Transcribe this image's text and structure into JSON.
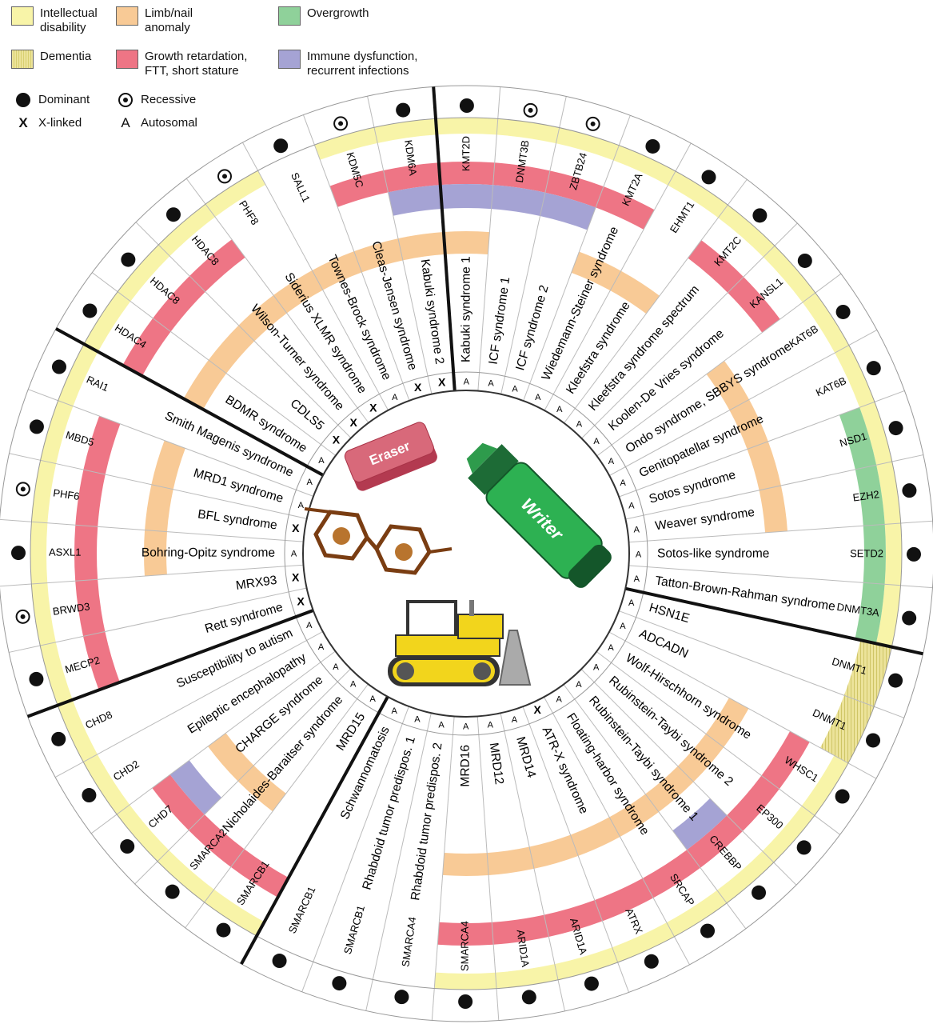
{
  "legend": {
    "intellectual_disability": "Intellectual\ndisability",
    "dementia": "Dementia",
    "limb_nail": "Limb/nail\nanomaly",
    "growth": "Growth retardation,\nFTT, short stature",
    "overgrowth": "Overgrowth",
    "immune": "Immune dysfunction,\nrecurrent infections",
    "dominant": "Dominant",
    "recessive": "Recessive",
    "x_linked": "X-linked",
    "autosomal": "Autosomal"
  },
  "colors": {
    "yellow": "#f8f4a8",
    "orange": "#f8ca96",
    "pink": "#ee7585",
    "purple": "#a5a3d4",
    "green": "#8fd19a",
    "dementia": "#ece39a"
  },
  "center_icons": {
    "eraser": "Eraser",
    "writer": "Writer",
    "reader": "glasses-icon",
    "remodeler": "bulldozer-icon"
  },
  "sectors": [
    {
      "name": "eraser",
      "icon": "eraser-icon"
    },
    {
      "name": "writer",
      "icon": "marker-icon"
    },
    {
      "name": "remodeler",
      "icon": "bulldozer-icon"
    },
    {
      "name": "reader",
      "icon": "glasses-icon"
    }
  ],
  "entries": [
    {
      "gene": "KMT2D",
      "disease": "Kabuki syndrome 1",
      "inh": "dom",
      "chr": "A",
      "id": true,
      "orange": true,
      "pink": true,
      "purple": true,
      "green": false
    },
    {
      "gene": "DNMT3B",
      "disease": "ICF syndrome 1",
      "inh": "rec",
      "chr": "A",
      "id": true,
      "orange": false,
      "pink": true,
      "purple": true,
      "green": false
    },
    {
      "gene": "ZBTB24",
      "disease": "ICF syndrome 2",
      "inh": "rec",
      "chr": "A",
      "id": true,
      "orange": false,
      "pink": true,
      "purple": true,
      "green": false
    },
    {
      "gene": "KMT2A",
      "disease": "Wiedemann-Steiner syndrome",
      "inh": "dom",
      "chr": "A",
      "id": true,
      "orange": true,
      "pink": true,
      "purple": false,
      "green": false
    },
    {
      "gene": "EHMT1",
      "disease": "Kleefstra syndrome",
      "inh": "dom",
      "chr": "A",
      "id": true,
      "orange": true,
      "pink": false,
      "purple": false,
      "green": false
    },
    {
      "gene": "KMT2C",
      "disease": "Kleefstra syndrome spectrum",
      "inh": "dom",
      "chr": "A",
      "id": true,
      "orange": false,
      "pink": true,
      "purple": false,
      "green": false
    },
    {
      "gene": "KANSL1",
      "disease": "Koolen-De Vries syndrome",
      "inh": "dom",
      "chr": "A",
      "id": true,
      "orange": false,
      "pink": true,
      "purple": false,
      "green": false
    },
    {
      "gene": "KAT6B",
      "disease": "Ondo syndrome, SBBYS syndrome",
      "inh": "dom",
      "chr": "A",
      "id": true,
      "orange": true,
      "pink": false,
      "purple": false,
      "green": false
    },
    {
      "gene": "KAT6B",
      "disease": "Genitopatellar syndrome",
      "inh": "dom",
      "chr": "A",
      "id": true,
      "orange": true,
      "pink": false,
      "purple": false,
      "green": false
    },
    {
      "gene": "NSD1",
      "disease": "Sotos syndrome",
      "inh": "dom",
      "chr": "A",
      "id": true,
      "orange": true,
      "pink": false,
      "purple": false,
      "green": true
    },
    {
      "gene": "EZH2",
      "disease": "Weaver syndrome",
      "inh": "dom",
      "chr": "A",
      "id": true,
      "orange": true,
      "pink": false,
      "purple": false,
      "green": true
    },
    {
      "gene": "SETD2",
      "disease": "Sotos-like syndrome",
      "inh": "dom",
      "chr": "A",
      "id": true,
      "orange": false,
      "pink": false,
      "purple": false,
      "green": true
    },
    {
      "gene": "DNMT3A",
      "disease": "Tatton-Brown-Rahman syndrome",
      "inh": "dom",
      "chr": "A",
      "id": true,
      "orange": false,
      "pink": false,
      "purple": false,
      "green": true
    },
    {
      "gene": "DNMT1",
      "disease": "HSN1E",
      "inh": "dom",
      "chr": "A",
      "id": false,
      "dementia": true,
      "orange": false,
      "pink": false,
      "purple": false,
      "green": false
    },
    {
      "gene": "DNMT1",
      "disease": "ADCADN",
      "inh": "dom",
      "chr": "A",
      "id": false,
      "dementia": true,
      "orange": false,
      "pink": false,
      "purple": false,
      "green": false
    },
    {
      "gene": "WHSC1",
      "disease": "Wolf-Hirschhorn syndrome",
      "inh": "dom",
      "chr": "A",
      "id": true,
      "orange": true,
      "pink": true,
      "purple": false,
      "green": false
    },
    {
      "gene": "EP300",
      "disease": "Rubinstein-Taybi syndrome 2",
      "inh": "dom",
      "chr": "A",
      "id": true,
      "orange": true,
      "pink": true,
      "purple": false,
      "green": false
    },
    {
      "gene": "CREBBP",
      "disease": "Rubinstein-Taybi syndrome 1",
      "inh": "dom",
      "chr": "A",
      "id": true,
      "orange": true,
      "pink": true,
      "purple": true,
      "green": false
    },
    {
      "gene": "SRCAP",
      "disease": "Floating-harbor syndrome",
      "inh": "dom",
      "chr": "A",
      "id": true,
      "orange": true,
      "pink": true,
      "purple": false,
      "green": false
    },
    {
      "gene": "ATRX",
      "disease": "ATR-X syndrome",
      "inh": "dom",
      "chr": "X",
      "id": true,
      "orange": true,
      "pink": true,
      "purple": false,
      "green": false
    },
    {
      "gene": "ARID1A",
      "disease": "MRD14",
      "inh": "dom",
      "chr": "A",
      "id": true,
      "orange": true,
      "pink": true,
      "purple": false,
      "green": false
    },
    {
      "gene": "ARID1A",
      "disease": "MRD12",
      "inh": "dom",
      "chr": "A",
      "id": true,
      "orange": true,
      "pink": true,
      "purple": false,
      "green": false
    },
    {
      "gene": "SMARCA4",
      "disease": "MRD16",
      "inh": "dom",
      "chr": "A",
      "id": true,
      "orange": true,
      "pink": true,
      "purple": false,
      "green": false
    },
    {
      "gene": "SMARCA4",
      "disease": "Rhabdoid tumor predispos. 2",
      "inh": "dom",
      "chr": "A",
      "id": false,
      "orange": false,
      "pink": false,
      "purple": false,
      "green": false
    },
    {
      "gene": "SMARCB1",
      "disease": "Rhabdoid tumor predispos. 1",
      "inh": "dom",
      "chr": "A",
      "id": false,
      "orange": false,
      "pink": false,
      "purple": false,
      "green": false
    },
    {
      "gene": "SMARCB1",
      "disease": "Schwannomatosis",
      "inh": "dom",
      "chr": "A",
      "id": false,
      "orange": false,
      "pink": false,
      "purple": false,
      "green": false
    },
    {
      "gene": "SMARCB1",
      "disease": "MRD15",
      "inh": "dom",
      "chr": "A",
      "id": true,
      "orange": false,
      "pink": true,
      "purple": false,
      "green": false
    },
    {
      "gene": "SMARCA2",
      "disease": "Nicholaides-Baraitser syndrome",
      "inh": "dom",
      "chr": "A",
      "id": true,
      "orange": true,
      "pink": true,
      "purple": false,
      "green": false
    },
    {
      "gene": "CHD7",
      "disease": "CHARGE syndrome",
      "inh": "dom",
      "chr": "A",
      "id": true,
      "orange": true,
      "pink": true,
      "purple": true,
      "green": false
    },
    {
      "gene": "CHD2",
      "disease": "Epileptic encephalopathy",
      "inh": "dom",
      "chr": "A",
      "id": true,
      "orange": false,
      "pink": false,
      "purple": false,
      "green": false
    },
    {
      "gene": "CHD8",
      "disease": "Susceptibility to autism",
      "inh": "dom",
      "chr": "A",
      "id": true,
      "orange": false,
      "pink": false,
      "purple": false,
      "green": false
    },
    {
      "gene": "MECP2",
      "disease": "Rett syndrome",
      "inh": "dom",
      "chr": "X",
      "id": true,
      "orange": false,
      "pink": true,
      "purple": false,
      "green": false
    },
    {
      "gene": "BRWD3",
      "disease": "MRX93",
      "inh": "rec",
      "chr": "X",
      "id": true,
      "orange": false,
      "pink": true,
      "purple": false,
      "green": false
    },
    {
      "gene": "ASXL1",
      "disease": "Bohring-Opitz syndrome",
      "inh": "dom",
      "chr": "A",
      "id": true,
      "orange": true,
      "pink": true,
      "purple": false,
      "green": false
    },
    {
      "gene": "PHF6",
      "disease": "BFL syndrome",
      "inh": "rec",
      "chr": "X",
      "id": true,
      "orange": true,
      "pink": true,
      "purple": false,
      "green": false
    },
    {
      "gene": "MBD5",
      "disease": "MRD1 syndrome",
      "inh": "dom",
      "chr": "A",
      "id": true,
      "orange": true,
      "pink": true,
      "purple": false,
      "green": false
    },
    {
      "gene": "RAI1",
      "disease": "Smith Magenis syndrome",
      "inh": "dom",
      "chr": "A",
      "id": true,
      "orange": false,
      "pink": false,
      "purple": false,
      "green": false
    },
    {
      "gene": "HDAC4",
      "disease": "BDMR syndrome",
      "inh": "dom",
      "chr": "A",
      "id": true,
      "orange": true,
      "pink": true,
      "purple": false,
      "green": false
    },
    {
      "gene": "HDAC8",
      "disease": "CDLS5",
      "inh": "dom",
      "chr": "X",
      "id": true,
      "orange": true,
      "pink": true,
      "purple": false,
      "green": false
    },
    {
      "gene": "HDAC8",
      "disease": "Wilson-Turner syndrome",
      "inh": "dom",
      "chr": "X",
      "id": true,
      "orange": true,
      "pink": true,
      "purple": false,
      "green": false
    },
    {
      "gene": "PHF8",
      "disease": "Siderius XLMR syndrome",
      "inh": "rec",
      "chr": "X",
      "id": true,
      "orange": true,
      "pink": false,
      "purple": false,
      "green": false
    },
    {
      "gene": "SALL1",
      "disease": "Townes-Brock syndrome",
      "inh": "dom",
      "chr": "A",
      "id": false,
      "orange": true,
      "pink": false,
      "purple": false,
      "green": false
    },
    {
      "gene": "KDM5C",
      "disease": "Cleas-Jensen syndrome",
      "inh": "rec",
      "chr": "X",
      "id": true,
      "orange": true,
      "pink": true,
      "purple": false,
      "green": false
    },
    {
      "gene": "KDM6A",
      "disease": "Kabuki syndrome 2",
      "inh": "dom",
      "chr": "X",
      "id": true,
      "orange": true,
      "pink": true,
      "purple": true,
      "green": false
    }
  ]
}
